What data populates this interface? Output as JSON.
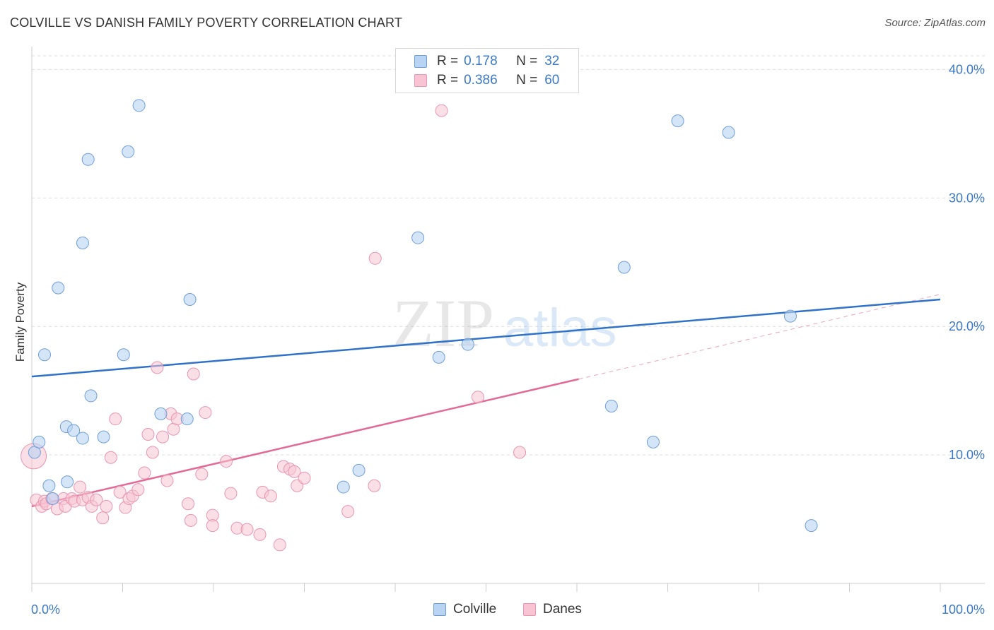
{
  "header": {
    "title": "COLVILLE VS DANISH FAMILY POVERTY CORRELATION CHART",
    "source": "Source: ZipAtlas.com"
  },
  "legend_top": {
    "rows": [
      {
        "r_label": "R =",
        "r_value": "0.178",
        "n_label": "N =",
        "n_value": "32"
      },
      {
        "r_label": "R =",
        "r_value": "0.386",
        "n_label": "N =",
        "n_value": "60"
      }
    ]
  },
  "legend_bottom": {
    "colville": "Colville",
    "danes": "Danes"
  },
  "watermark": {
    "zip": "ZIP",
    "atlas": "atlas"
  },
  "colors": {
    "colville_fill": "#b9d3f3",
    "colville_stroke": "#6f9fd8",
    "colville_line": "#2f72c8",
    "danes_fill": "#f8c4d4",
    "danes_stroke": "#e896b1",
    "danes_line": "#e46a96",
    "axis_text": "#3b78c8",
    "grid": "#dedede"
  },
  "chart_data": {
    "type": "scatter",
    "title": "COLVILLE VS DANISH FAMILY POVERTY CORRELATION CHART",
    "xlabel": "",
    "ylabel": "Family Poverty",
    "xlim": [
      0,
      100
    ],
    "ylim": [
      0,
      42
    ],
    "x_tick_labels": [
      "0.0%",
      "100.0%"
    ],
    "y_ticks": [
      10,
      20,
      30,
      40
    ],
    "y_tick_labels": [
      "10.0%",
      "20.0%",
      "30.0%",
      "40.0%"
    ],
    "grid": true,
    "legend_position": "top-center",
    "series": [
      {
        "name": "Colville",
        "points": [
          [
            0.3,
            10.2
          ],
          [
            0.8,
            11.0
          ],
          [
            1.4,
            17.8
          ],
          [
            1.9,
            7.6
          ],
          [
            2.3,
            6.6
          ],
          [
            2.9,
            23.0
          ],
          [
            3.8,
            12.2
          ],
          [
            3.9,
            7.9
          ],
          [
            4.6,
            11.9
          ],
          [
            5.6,
            11.3
          ],
          [
            5.6,
            26.5
          ],
          [
            6.2,
            33.0
          ],
          [
            6.5,
            14.6
          ],
          [
            7.9,
            11.4
          ],
          [
            10.1,
            17.8
          ],
          [
            10.6,
            33.6
          ],
          [
            11.8,
            37.2
          ],
          [
            14.2,
            13.2
          ],
          [
            17.1,
            12.8
          ],
          [
            17.4,
            22.1
          ],
          [
            34.3,
            7.5
          ],
          [
            36.0,
            8.8
          ],
          [
            42.5,
            26.9
          ],
          [
            44.8,
            17.6
          ],
          [
            48.0,
            18.6
          ],
          [
            63.8,
            13.8
          ],
          [
            65.2,
            24.6
          ],
          [
            68.4,
            11.0
          ],
          [
            71.1,
            36.0
          ],
          [
            76.7,
            35.1
          ],
          [
            83.5,
            20.8
          ],
          [
            85.8,
            4.5
          ]
        ],
        "trend": {
          "x": [
            0,
            100
          ],
          "y": [
            16.1,
            22.1
          ]
        }
      },
      {
        "name": "Danes",
        "points": [
          [
            0.2,
            9.9
          ],
          [
            0.5,
            6.5
          ],
          [
            1.1,
            6.0
          ],
          [
            1.4,
            6.4
          ],
          [
            1.6,
            6.2
          ],
          [
            2.2,
            6.6
          ],
          [
            2.8,
            5.8
          ],
          [
            3.5,
            6.6
          ],
          [
            3.7,
            6.0
          ],
          [
            4.4,
            6.6
          ],
          [
            4.7,
            6.4
          ],
          [
            5.3,
            7.5
          ],
          [
            5.6,
            6.5
          ],
          [
            6.2,
            6.7
          ],
          [
            6.6,
            6.0
          ],
          [
            7.1,
            6.5
          ],
          [
            7.8,
            5.1
          ],
          [
            8.2,
            6.0
          ],
          [
            8.7,
            9.8
          ],
          [
            9.2,
            12.8
          ],
          [
            9.7,
            7.1
          ],
          [
            10.3,
            5.9
          ],
          [
            10.7,
            6.6
          ],
          [
            11.1,
            6.8
          ],
          [
            11.7,
            7.3
          ],
          [
            12.4,
            8.6
          ],
          [
            12.8,
            11.6
          ],
          [
            13.3,
            10.2
          ],
          [
            13.8,
            16.8
          ],
          [
            14.4,
            11.4
          ],
          [
            14.9,
            8.0
          ],
          [
            15.3,
            13.2
          ],
          [
            15.6,
            12.0
          ],
          [
            16.0,
            12.8
          ],
          [
            17.2,
            6.2
          ],
          [
            17.5,
            4.9
          ],
          [
            17.8,
            16.3
          ],
          [
            18.7,
            8.5
          ],
          [
            19.1,
            13.3
          ],
          [
            19.9,
            5.3
          ],
          [
            19.9,
            4.5
          ],
          [
            21.4,
            9.5
          ],
          [
            21.9,
            7.0
          ],
          [
            22.6,
            4.3
          ],
          [
            23.7,
            4.2
          ],
          [
            25.1,
            3.8
          ],
          [
            25.4,
            7.1
          ],
          [
            26.3,
            6.8
          ],
          [
            27.3,
            3.0
          ],
          [
            27.7,
            9.1
          ],
          [
            28.4,
            8.9
          ],
          [
            28.9,
            8.7
          ],
          [
            29.2,
            7.6
          ],
          [
            30.0,
            8.2
          ],
          [
            34.8,
            5.6
          ],
          [
            37.7,
            7.6
          ],
          [
            37.8,
            25.3
          ],
          [
            45.1,
            36.8
          ],
          [
            49.1,
            14.5
          ],
          [
            53.7,
            10.2
          ]
        ],
        "trend": {
          "x": [
            0,
            60.2
          ],
          "y": [
            6.0,
            15.9
          ]
        },
        "trend_extension": {
          "x": [
            60.2,
            100
          ],
          "y": [
            15.9,
            22.5
          ]
        }
      }
    ]
  }
}
